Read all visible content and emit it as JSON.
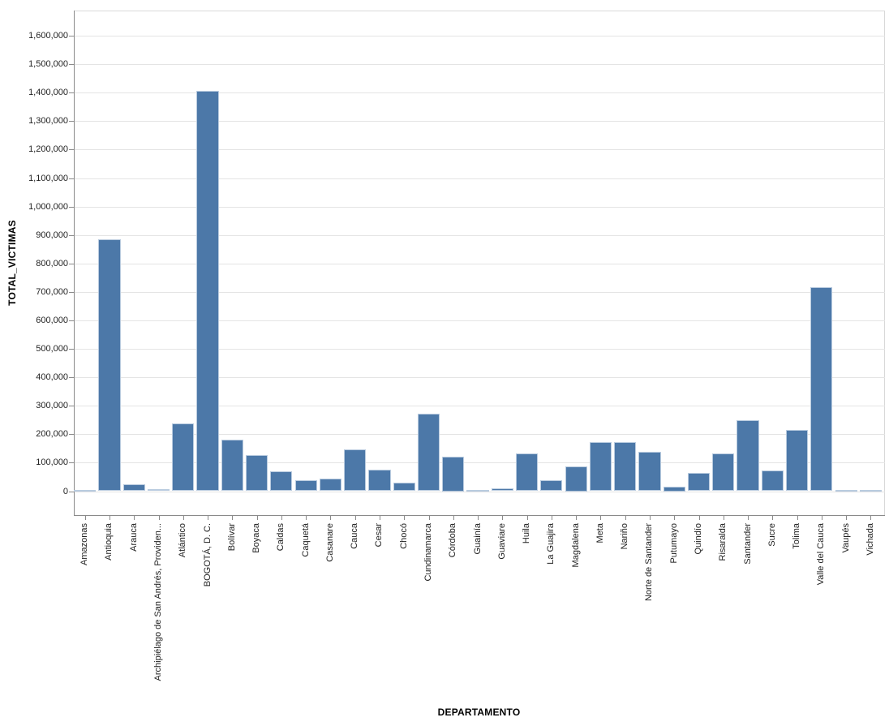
{
  "chart_data": {
    "type": "bar",
    "title": "",
    "xlabel": "DEPARTAMENTO",
    "ylabel": "TOTAL_VICTIMAS",
    "ylim": [
      0,
      1600000
    ],
    "y_tick_step": 100000,
    "grid": true,
    "legend_position": "none",
    "categories": [
      "Amazonas",
      "Antioquia",
      "Arauca",
      "Archipiélago de San Andrés, Providen...",
      "Atlántico",
      "BOGOTÁ, D. C.",
      "Bolívar",
      "Boyaca",
      "Caldas",
      "Caquetá",
      "Casanare",
      "Cauca",
      "Cesar",
      "Chocó",
      "Cundinamarca",
      "Córdoba",
      "Guainía",
      "Guaviare",
      "Huila",
      "La Guajira",
      "Magdalena",
      "Meta",
      "Nariño",
      "Norte de Santander",
      "Putumayo",
      "Quindío",
      "Risaralda",
      "Santander",
      "Sucre",
      "Tolima",
      "Valle del Cauca",
      "Vaupés",
      "Vichada"
    ],
    "values": [
      5000,
      884000,
      25000,
      8000,
      239000,
      1407000,
      182000,
      127000,
      71000,
      39000,
      45000,
      146000,
      76000,
      31000,
      273000,
      121000,
      2000,
      9000,
      132000,
      38000,
      87000,
      173000,
      172000,
      139000,
      17000,
      63000,
      132000,
      249000,
      72000,
      216000,
      716000,
      2000,
      4000
    ],
    "colors": {
      "bar_fill": "#4c78a8",
      "bar_edge": "#b9cbdf",
      "grid": "#e4e4e4",
      "axis_domain": "#8a8a8a",
      "view_border": "#d9d9d9",
      "label_text": "#1f1f1f",
      "title_text": "#000000"
    }
  }
}
